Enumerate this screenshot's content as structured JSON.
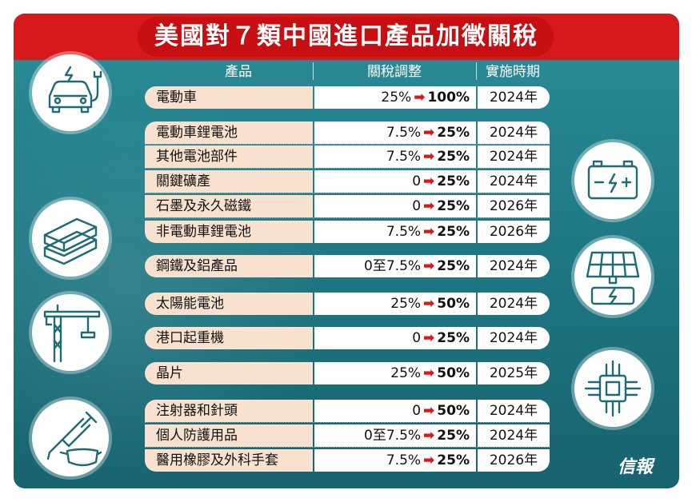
{
  "title": "美國對７類中國進口產品加徵關稅",
  "headers": {
    "product": "產品",
    "rate": "關稅調整",
    "time": "實施時期"
  },
  "arrow_glyph": "➡",
  "logo": "信報",
  "accent_color": "#d6191b",
  "rows": [
    {
      "product": "電動車",
      "old": "25%",
      "new": "100%",
      "time": "2024年"
    },
    {
      "product": "電動車鋰電池",
      "old": "7.5%",
      "new": "25%",
      "time": "2024年"
    },
    {
      "product": "其他電池部件",
      "old": "7.5%",
      "new": "25%",
      "time": "2024年"
    },
    {
      "product": "關鍵礦產",
      "old": "0",
      "new": "25%",
      "time": "2024年"
    },
    {
      "product": "石墨及永久磁鐵",
      "old": "0",
      "new": "25%",
      "time": "2026年"
    },
    {
      "product": "非電動車鋰電池",
      "old": "7.5%",
      "new": "25%",
      "time": "2026年"
    },
    {
      "product": "鋼鐵及鋁產品",
      "old": "0至7.5%",
      "new": "25%",
      "time": "2024年"
    },
    {
      "product": "太陽能電池",
      "old": "25%",
      "new": "50%",
      "time": "2024年"
    },
    {
      "product": "港口起重機",
      "old": "0",
      "new": "25%",
      "time": "2024年"
    },
    {
      "product": "晶片",
      "old": "25%",
      "new": "50%",
      "time": "2025年"
    },
    {
      "product": "注射器和針頭",
      "old": "0",
      "new": "50%",
      "time": "2024年"
    },
    {
      "product": "個人防護用品",
      "old": "0至7.5%",
      "new": "25%",
      "time": "2024年"
    },
    {
      "product": "醫用橡膠及外科手套",
      "old": "7.5%",
      "new": "25%",
      "time": "2026年"
    }
  ],
  "icons": [
    "electric-car-icon",
    "battery-icon",
    "steel-beams-icon",
    "solar-panel-icon",
    "crane-icon",
    "chip-icon",
    "syringe-mask-icon"
  ]
}
